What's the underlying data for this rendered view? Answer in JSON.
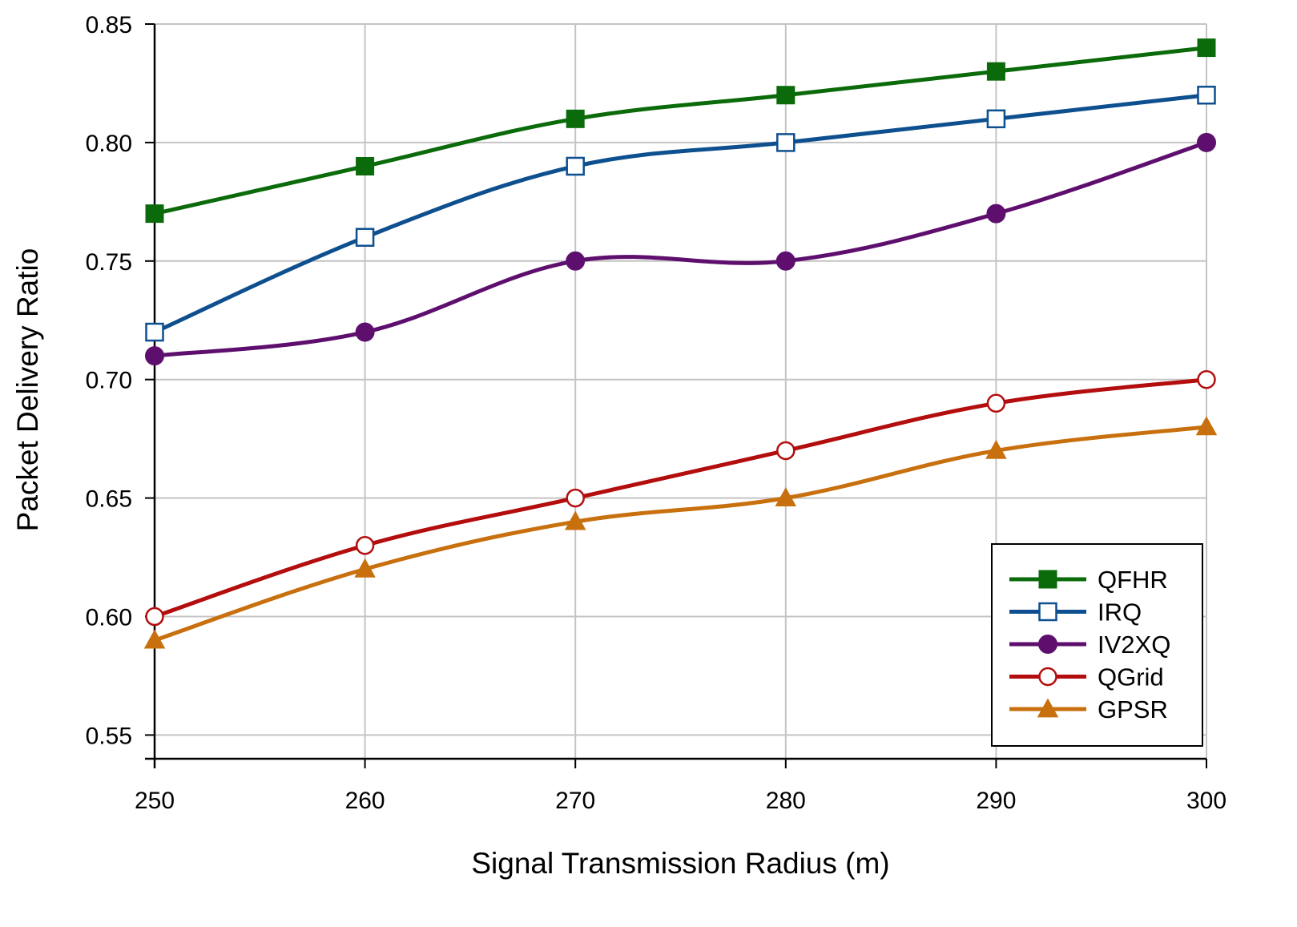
{
  "chart_data": {
    "type": "line",
    "title": "",
    "xlabel": "Signal Transmission Radius (m)",
    "ylabel": "Packet Delivery Ratio",
    "x": [
      250,
      260,
      270,
      280,
      290,
      300
    ],
    "xlim": [
      250,
      300
    ],
    "ylim": [
      0.54,
      0.85
    ],
    "xticks": [
      250,
      260,
      270,
      280,
      290,
      300
    ],
    "xtick_labels": [
      "250",
      "260",
      "270",
      "280",
      "290",
      "300"
    ],
    "yticks": [
      0.55,
      0.6,
      0.65,
      0.7,
      0.75,
      0.8,
      0.85
    ],
    "ytick_labels": [
      "0.55",
      "0.60",
      "0.65",
      "0.70",
      "0.75",
      "0.80",
      "0.85"
    ],
    "grid": true,
    "legend_position": "bottom-right",
    "series": [
      {
        "name": "QFHR",
        "values": [
          0.77,
          0.79,
          0.81,
          0.82,
          0.83,
          0.84
        ],
        "color": "#0b6b0b",
        "marker": "square-filled"
      },
      {
        "name": "IRQ",
        "values": [
          0.72,
          0.76,
          0.79,
          0.8,
          0.81,
          0.82
        ],
        "color": "#0d4f8f",
        "marker": "square-open"
      },
      {
        "name": "IV2XQ",
        "values": [
          0.71,
          0.72,
          0.75,
          0.75,
          0.77,
          0.8
        ],
        "color": "#5e0f6e",
        "marker": "circle-filled"
      },
      {
        "name": "QGrid",
        "values": [
          0.6,
          0.63,
          0.65,
          0.67,
          0.69,
          0.7
        ],
        "color": "#b30d0d",
        "marker": "circle-open"
      },
      {
        "name": "GPSR",
        "values": [
          0.59,
          0.62,
          0.64,
          0.65,
          0.67,
          0.68
        ],
        "color": "#c8700e",
        "marker": "triangle-filled"
      }
    ]
  }
}
